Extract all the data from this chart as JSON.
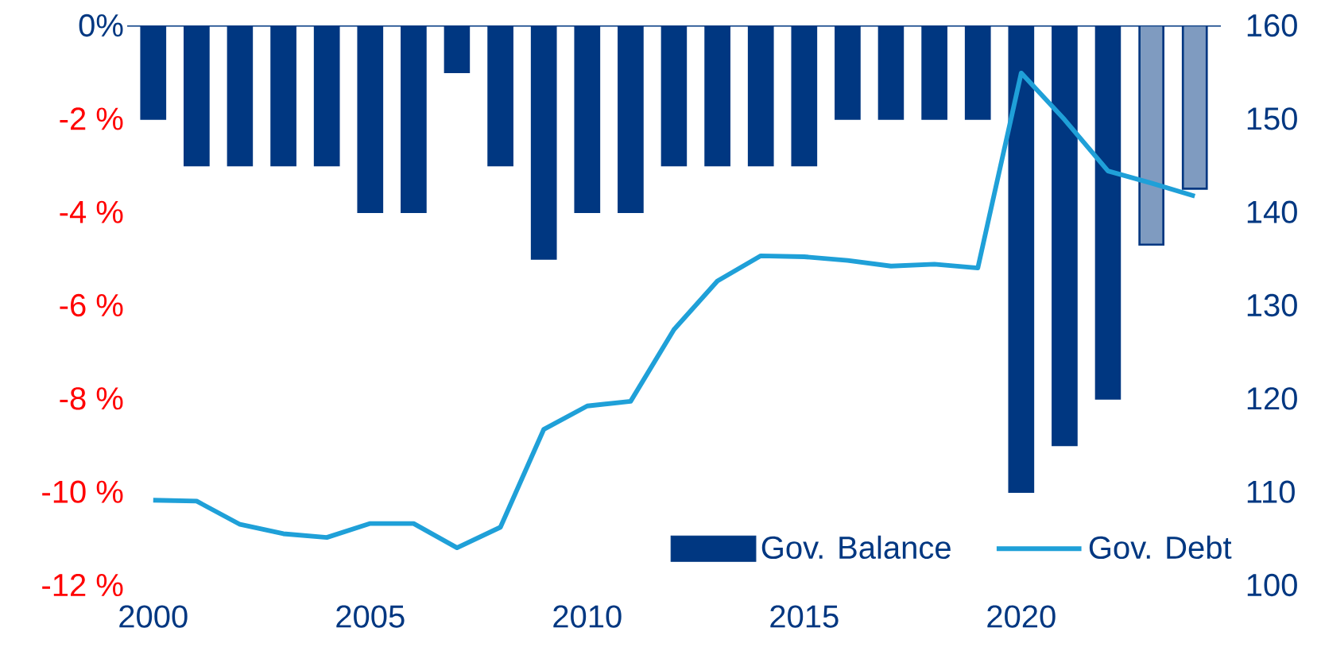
{
  "chart_data": {
    "type": "bar",
    "x": [
      2000,
      2001,
      2002,
      2003,
      2004,
      2005,
      2006,
      2007,
      2008,
      2009,
      2010,
      2011,
      2012,
      2013,
      2014,
      2015,
      2016,
      2017,
      2018,
      2019,
      2020,
      2021,
      2022,
      2023,
      2024
    ],
    "xlim": [
      1999.4,
      2024.6
    ],
    "xticks": [
      2000,
      2005,
      2010,
      2015,
      2020
    ],
    "ylim": [
      -12,
      0
    ],
    "yticks": [
      {
        "value": 0,
        "label": "0%"
      },
      {
        "value": -2,
        "label": "-2 %"
      },
      {
        "value": -4,
        "label": "-4 %"
      },
      {
        "value": -6,
        "label": "-6 %"
      },
      {
        "value": -8,
        "label": "-8 %"
      },
      {
        "value": -10,
        "label": "-10 %"
      },
      {
        "value": -12,
        "label": "-12 %"
      }
    ],
    "y2lim": [
      100,
      160
    ],
    "y2ticks": [
      100,
      110,
      120,
      130,
      140,
      150,
      160
    ],
    "legend": "bottom right",
    "series": [
      {
        "name": "Gov. Balance",
        "color": "#003781",
        "colors": [
          "#003781",
          "#003781",
          "#003781",
          "#003781",
          "#003781",
          "#003781",
          "#003781",
          "#003781",
          "#003781",
          "#003781",
          "#003781",
          "#003781",
          "#003781",
          "#003781",
          "#003781",
          "#003781",
          "#003781",
          "#003781",
          "#003781",
          "#003781",
          "#003781",
          "#003781",
          "#003781",
          "#7f9bc0",
          "#7f9bc0"
        ],
        "values": [
          -2,
          -3,
          -3,
          -3,
          -3,
          -4,
          -4,
          -1,
          -3,
          -5,
          -4,
          -4,
          -3,
          -3,
          -3,
          -3,
          -2,
          -2,
          -2,
          -2,
          -10,
          -9,
          -8,
          -4.7,
          -3.5
        ]
      },
      {
        "name": "Gov. Debt",
        "type": "line",
        "axis": "y2",
        "color": "#1fa0d8",
        "values": [
          109.1,
          109.0,
          106.5,
          105.5,
          105.1,
          106.6,
          106.6,
          104.0,
          106.2,
          116.7,
          119.2,
          119.7,
          127.4,
          132.6,
          135.3,
          135.2,
          134.8,
          134.2,
          134.4,
          134.0,
          154.9,
          149.9,
          144.4,
          143.1,
          141.7
        ]
      }
    ]
  }
}
